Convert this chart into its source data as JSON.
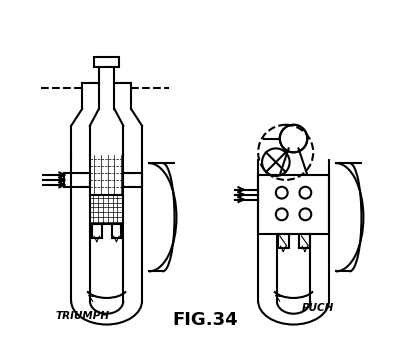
{
  "title": "FIG.34",
  "label_left": "TRIUMPH",
  "label_right": "PUCH",
  "bg_color": "#ffffff",
  "line_color": "#000000",
  "line_width": 1.5,
  "fig_width": 4.1,
  "fig_height": 3.46,
  "dpi": 100
}
